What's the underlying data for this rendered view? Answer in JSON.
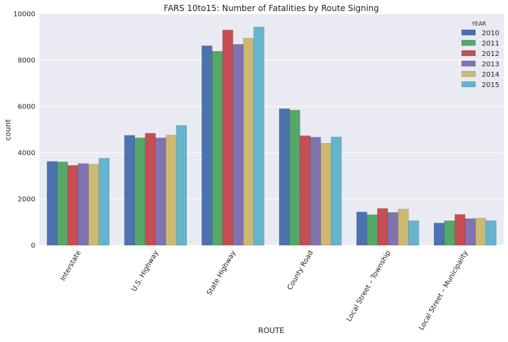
{
  "chart_data": {
    "type": "bar",
    "title": "FARS 10to15: Number of Fatalities by Route Signing",
    "xlabel": "ROUTE",
    "ylabel": "count",
    "ylim": [
      0,
      10000
    ],
    "yticks": [
      0,
      2000,
      4000,
      6000,
      8000,
      10000
    ],
    "grid": true,
    "legend_title": "YEAR",
    "legend_position": "top-right",
    "categories": [
      "Interstate",
      "U.S. Highway",
      "State Highway",
      "County Road",
      "Local Street – Township",
      "Local Street – Municipality"
    ],
    "series": [
      {
        "name": "2010",
        "color": "#4c72b0",
        "values": [
          3620,
          4750,
          8620,
          5900,
          1440,
          960
        ]
      },
      {
        "name": "2011",
        "color": "#55a868",
        "values": [
          3600,
          4640,
          8380,
          5840,
          1320,
          1060
        ]
      },
      {
        "name": "2012",
        "color": "#c44e52",
        "values": [
          3450,
          4840,
          9300,
          4730,
          1590,
          1330
        ]
      },
      {
        "name": "2013",
        "color": "#8172b2",
        "values": [
          3530,
          4640,
          8680,
          4670,
          1420,
          1150
        ]
      },
      {
        "name": "2014",
        "color": "#ccb974",
        "values": [
          3500,
          4760,
          8950,
          4410,
          1560,
          1170
        ]
      },
      {
        "name": "2015",
        "color": "#64b5cd",
        "values": [
          3760,
          5180,
          9430,
          4680,
          1060,
          1060
        ]
      }
    ]
  }
}
